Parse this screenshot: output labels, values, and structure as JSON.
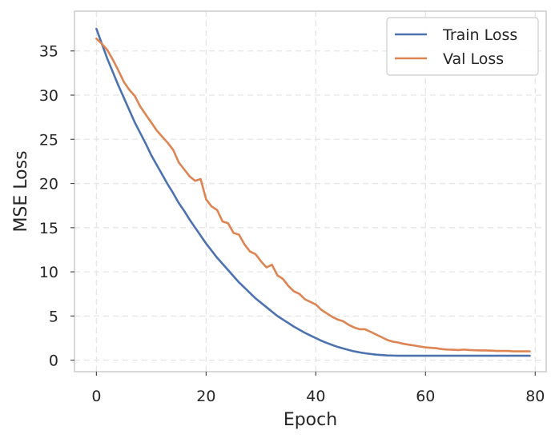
{
  "chart_data": {
    "type": "line",
    "title": "",
    "xlabel": "Epoch",
    "ylabel": "MSE Loss",
    "xlim": [
      -4,
      82
    ],
    "ylim": [
      -1.3,
      39.5
    ],
    "xticks": [
      0,
      20,
      40,
      60,
      80
    ],
    "yticks": [
      0,
      5,
      10,
      15,
      20,
      25,
      30,
      35
    ],
    "grid": true,
    "legend_position": "top-right",
    "x": [
      0,
      1,
      2,
      3,
      4,
      5,
      6,
      7,
      8,
      9,
      10,
      11,
      12,
      13,
      14,
      15,
      16,
      17,
      18,
      19,
      20,
      21,
      22,
      23,
      24,
      25,
      26,
      27,
      28,
      29,
      30,
      31,
      32,
      33,
      34,
      35,
      36,
      37,
      38,
      39,
      40,
      41,
      42,
      43,
      44,
      45,
      46,
      47,
      48,
      49,
      50,
      51,
      52,
      53,
      54,
      55,
      56,
      57,
      58,
      59,
      60,
      61,
      62,
      63,
      64,
      65,
      66,
      67,
      68,
      69,
      70,
      71,
      72,
      73,
      74,
      75,
      76,
      77,
      78,
      79
    ],
    "series": [
      {
        "name": "Train Loss",
        "color": "#4c72b0",
        "values": [
          37.5,
          35.8,
          34.1,
          32.6,
          31.1,
          29.7,
          28.3,
          26.9,
          25.7,
          24.5,
          23.2,
          22.1,
          21.0,
          19.9,
          18.9,
          17.8,
          16.9,
          15.9,
          15.0,
          14.1,
          13.2,
          12.4,
          11.6,
          10.9,
          10.2,
          9.5,
          8.8,
          8.2,
          7.6,
          7.0,
          6.5,
          6.0,
          5.5,
          5.0,
          4.6,
          4.2,
          3.8,
          3.45,
          3.1,
          2.8,
          2.5,
          2.2,
          1.95,
          1.72,
          1.5,
          1.32,
          1.15,
          1.0,
          0.88,
          0.78,
          0.7,
          0.63,
          0.58,
          0.54,
          0.52,
          0.5,
          0.5,
          0.5,
          0.5,
          0.5,
          0.5,
          0.5,
          0.5,
          0.5,
          0.5,
          0.5,
          0.5,
          0.5,
          0.5,
          0.5,
          0.5,
          0.5,
          0.5,
          0.5,
          0.5,
          0.5,
          0.5,
          0.5,
          0.5,
          0.5
        ]
      },
      {
        "name": "Val Loss",
        "color": "#dd8452",
        "values": [
          36.4,
          35.8,
          35.1,
          34.0,
          32.8,
          31.5,
          30.6,
          29.9,
          28.7,
          27.8,
          26.9,
          26.0,
          25.3,
          24.6,
          23.8,
          22.4,
          21.6,
          20.8,
          20.3,
          20.5,
          18.2,
          17.4,
          17.0,
          15.7,
          15.5,
          14.4,
          14.2,
          13.1,
          12.3,
          12.0,
          11.2,
          10.5,
          10.8,
          9.6,
          9.2,
          8.4,
          7.8,
          7.5,
          6.9,
          6.6,
          6.3,
          5.7,
          5.3,
          4.9,
          4.6,
          4.4,
          4.0,
          3.7,
          3.5,
          3.5,
          3.2,
          2.9,
          2.6,
          2.3,
          2.1,
          2.0,
          1.85,
          1.75,
          1.65,
          1.55,
          1.45,
          1.4,
          1.35,
          1.25,
          1.2,
          1.18,
          1.15,
          1.2,
          1.15,
          1.12,
          1.1,
          1.1,
          1.08,
          1.05,
          1.05,
          1.05,
          1.0,
          1.0,
          1.0,
          1.0
        ]
      }
    ]
  }
}
